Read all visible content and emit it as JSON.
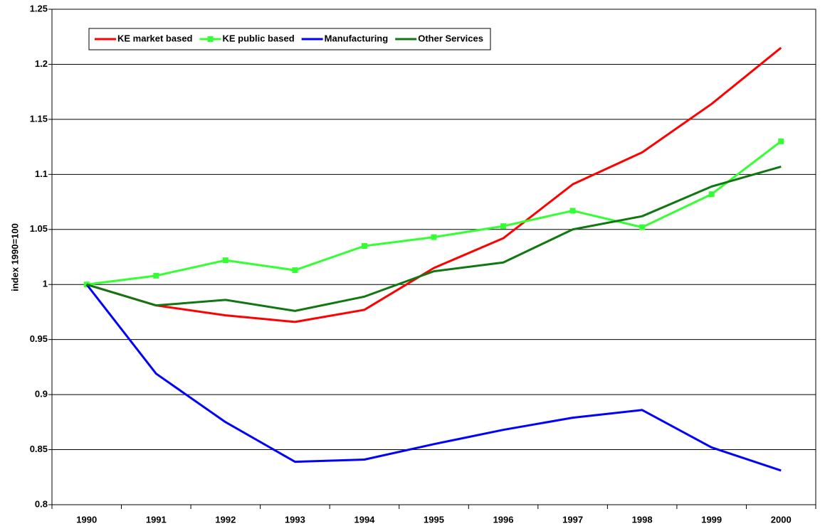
{
  "chart_data": {
    "type": "line",
    "y_label": "index 1990=100",
    "categories": [
      "1990",
      "1991",
      "1992",
      "1993",
      "1994",
      "1995",
      "1996",
      "1997",
      "1998",
      "1999",
      "2000"
    ],
    "series": [
      {
        "name": "KE market based",
        "color": "#ff0000",
        "marker": false,
        "values": [
          1.0,
          0.981,
          0.972,
          0.966,
          0.977,
          1.015,
          1.042,
          1.091,
          1.12,
          1.164,
          1.215
        ]
      },
      {
        "name": "KE public based",
        "color": "#33ff33",
        "marker": true,
        "values": [
          1.0,
          1.008,
          1.022,
          1.013,
          1.035,
          1.043,
          1.053,
          1.067,
          1.052,
          1.082,
          1.13
        ]
      },
      {
        "name": "Manufacturing",
        "color": "#0000ff",
        "marker": false,
        "values": [
          1.0,
          0.919,
          0.875,
          0.839,
          0.841,
          0.855,
          0.868,
          0.879,
          0.886,
          0.852,
          0.831
        ]
      },
      {
        "name": "Other Services",
        "color": "#117711",
        "marker": false,
        "values": [
          1.0,
          0.981,
          0.986,
          0.976,
          0.989,
          1.012,
          1.02,
          1.05,
          1.062,
          1.089,
          1.107
        ]
      }
    ],
    "ylim": [
      0.8,
      1.25
    ],
    "yticks": [
      0.8,
      0.85,
      0.9,
      0.95,
      1,
      1.05,
      1.1,
      1.15,
      1.2,
      1.25
    ],
    "grid": true
  }
}
